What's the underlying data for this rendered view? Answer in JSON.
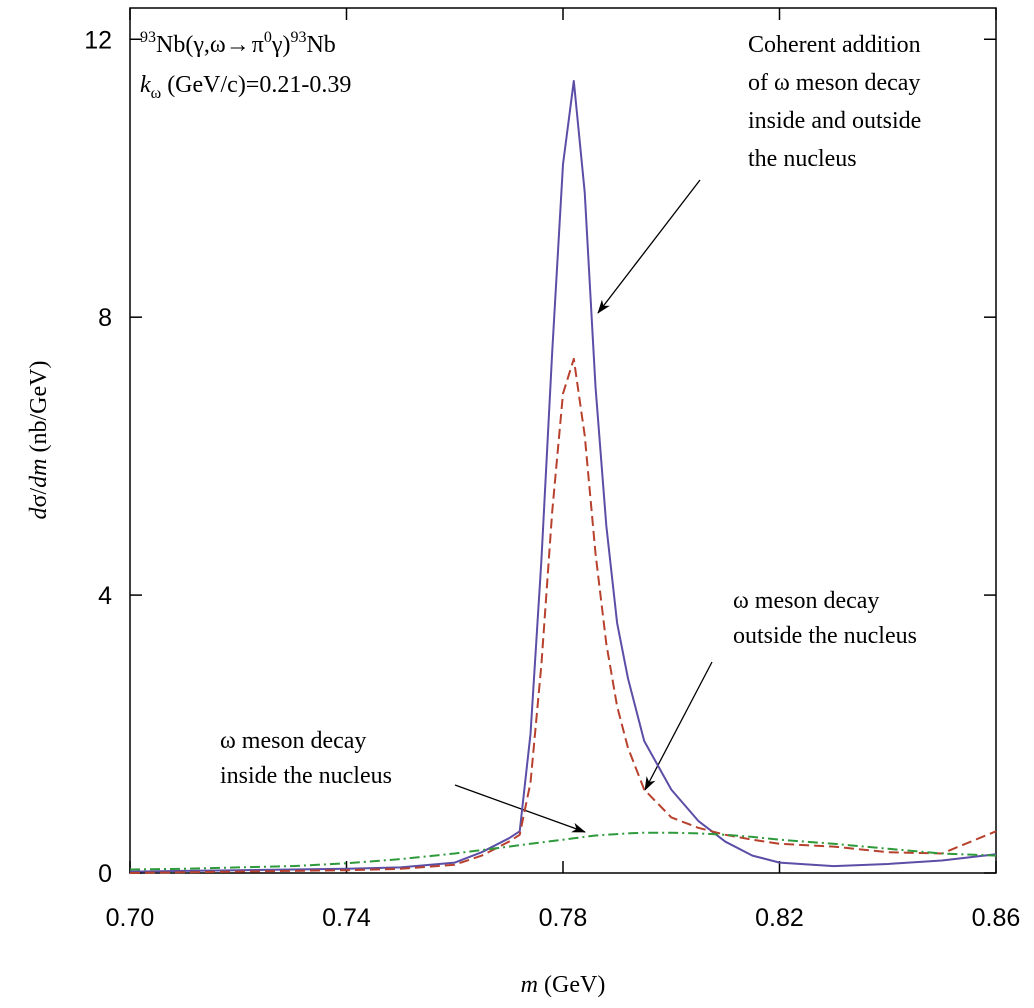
{
  "chart_data": {
    "type": "line",
    "title": {
      "parts": [
        "93",
        "Nb(γ,ω",
        "→",
        "π",
        "0",
        "γ)",
        "93",
        "Nb"
      ]
    },
    "subtitle": {
      "parts": [
        "k",
        "ω",
        " (GeV/c)=0.21-0.39"
      ]
    },
    "x_label": {
      "parts": [
        "m",
        " (GeV)"
      ]
    },
    "y_label": {
      "parts": [
        "d",
        "σ/",
        "dm",
        " (nb/GeV)"
      ]
    },
    "annotations": [
      {
        "lines": [
          "Coherent addition",
          "of ω meson decay",
          "inside and outside",
          "the nucleus"
        ]
      },
      {
        "lines": [
          "ω meson decay",
          "outside the nucleus"
        ]
      },
      {
        "lines": [
          "ω meson decay",
          "inside the nucleus"
        ]
      }
    ],
    "x": [
      0.7,
      0.71,
      0.72,
      0.73,
      0.74,
      0.75,
      0.76,
      0.765,
      0.77,
      0.772,
      0.774,
      0.776,
      0.778,
      0.78,
      0.782,
      0.784,
      0.786,
      0.788,
      0.79,
      0.792,
      0.795,
      0.8,
      0.805,
      0.81,
      0.815,
      0.82,
      0.83,
      0.84,
      0.85,
      0.86
    ],
    "series": [
      {
        "color": "#5b4ea6",
        "style": "solid",
        "values": [
          0.02,
          0.03,
          0.04,
          0.05,
          0.06,
          0.08,
          0.15,
          0.3,
          0.5,
          0.6,
          2.0,
          4.5,
          7.5,
          10.2,
          11.4,
          9.8,
          7.0,
          5.0,
          3.6,
          2.8,
          1.9,
          1.2,
          0.75,
          0.45,
          0.25,
          0.15,
          0.1,
          0.13,
          0.18,
          0.27
        ]
      },
      {
        "color": "#b8412e",
        "style": "dashed",
        "values": [
          0.0,
          0.01,
          0.02,
          0.03,
          0.04,
          0.06,
          0.12,
          0.25,
          0.45,
          0.55,
          1.3,
          3.0,
          5.2,
          6.9,
          7.4,
          6.3,
          4.6,
          3.3,
          2.4,
          1.8,
          1.2,
          0.8,
          0.65,
          0.55,
          0.48,
          0.42,
          0.38,
          0.3,
          0.28,
          0.6
        ]
      },
      {
        "color": "#2e9a3c",
        "style": "dashdot",
        "values": [
          0.05,
          0.06,
          0.08,
          0.1,
          0.14,
          0.2,
          0.28,
          0.33,
          0.38,
          0.4,
          0.42,
          0.44,
          0.46,
          0.48,
          0.5,
          0.52,
          0.54,
          0.55,
          0.56,
          0.57,
          0.58,
          0.58,
          0.57,
          0.55,
          0.52,
          0.48,
          0.42,
          0.35,
          0.28,
          0.25
        ]
      }
    ],
    "xlim": [
      0.7,
      0.86
    ],
    "xticks": [
      {
        "value": 0.7,
        "label": "0.70"
      },
      0.74,
      0.78,
      0.82,
      0.86
    ],
    "ylim": [
      0,
      12.45
    ],
    "yticks": [
      0,
      4,
      8,
      12
    ]
  }
}
